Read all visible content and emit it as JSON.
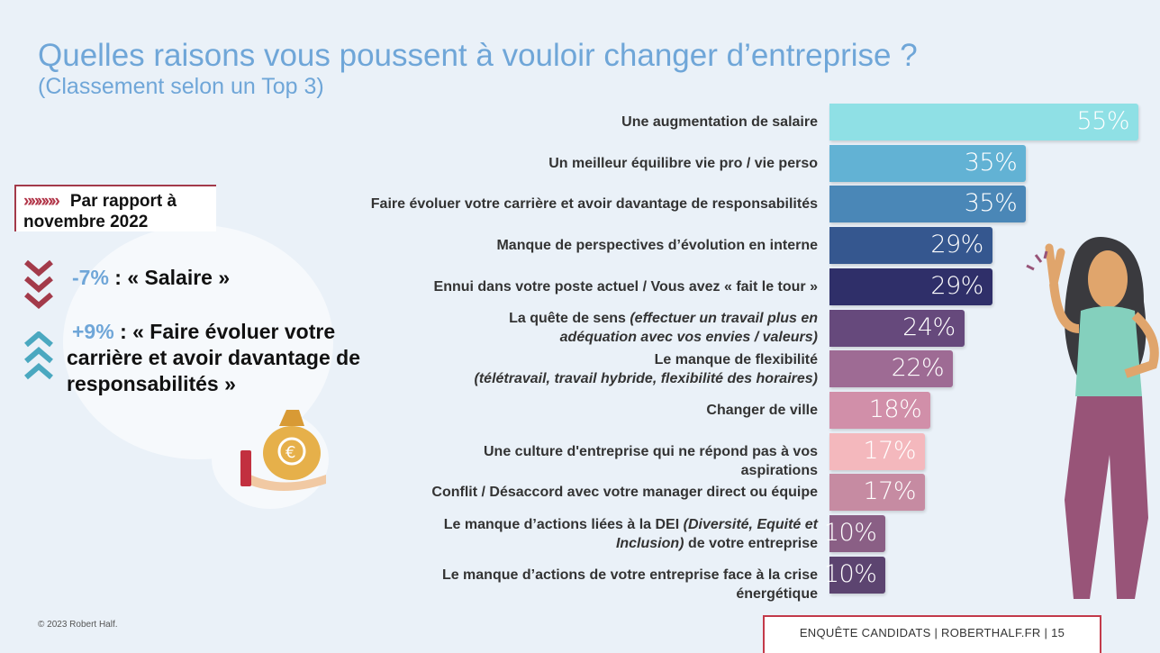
{
  "title": "Quelles raisons vous poussent à vouloir changer d’entreprise ?",
  "subtitle": "(Classement selon un Top 3)",
  "comparison": {
    "chevrons": "»»»»»",
    "heading": "Par rapport à novembre 2022",
    "items": [
      {
        "pct": "-7%",
        "text": " : « Salaire »",
        "direction": "down",
        "color": "#a33a4a"
      },
      {
        "pct": "+9%",
        "text": " : « Faire évoluer votre carrière et avoir davantage de responsabilités »",
        "direction": "up",
        "color": "#4aa8c0"
      }
    ]
  },
  "chart_data": {
    "type": "bar",
    "orientation": "horizontal",
    "xlim": [
      0,
      55
    ],
    "unit": "%",
    "categories": [
      [
        {
          "t": "Une augmentation de salaire"
        }
      ],
      [
        {
          "t": "Un meilleur équilibre vie pro / vie perso"
        }
      ],
      [
        {
          "t": "Faire évoluer votre carrière et avoir davantage de responsabilités"
        }
      ],
      [
        {
          "t": "Manque de perspectives d’évolution en interne"
        }
      ],
      [
        {
          "t": "Ennui dans votre poste actuel / Vous avez « fait le tour »"
        }
      ],
      [
        {
          "t": "La quête de sens "
        },
        {
          "t": "(effectuer un travail plus en adéquation avec vos envies / valeurs)",
          "i": true
        }
      ],
      [
        {
          "t": "Le manque de flexibilité"
        },
        {
          "t": "(télétravail, travail hybride, flexibilité des horaires)",
          "i": true,
          "br": true
        }
      ],
      [
        {
          "t": "Changer de ville"
        }
      ],
      [
        {
          "t": "Une culture d'entreprise qui ne répond pas à vos aspirations"
        }
      ],
      [
        {
          "t": "Conflit / Désaccord avec votre manager direct ou équipe"
        }
      ],
      [
        {
          "t": "Le manque d’actions liées à la DEI "
        },
        {
          "t": "(Diversité, Equité et Inclusion)",
          "i": true
        },
        {
          "t": " de votre entreprise"
        }
      ],
      [
        {
          "t": "Le manque d’actions de votre entreprise face à la crise énergétique"
        }
      ]
    ],
    "values": [
      55,
      35,
      35,
      29,
      29,
      24,
      22,
      18,
      17,
      17,
      10,
      10
    ],
    "value_labels": [
      "55%",
      "35%",
      "35%",
      "29%",
      "29%",
      "24%",
      "22%",
      "18%",
      "17%",
      "17%",
      "10%",
      "10%"
    ],
    "colors": [
      "#8fe0e5",
      "#62b2d4",
      "#4a87b7",
      "#35578f",
      "#2f2f69",
      "#66497c",
      "#9e6b94",
      "#d18fa9",
      "#f4b8bd",
      "#c68ba2",
      "#8a5f85",
      "#5c4470"
    ]
  },
  "copyright": "© 2023 Robert Half.",
  "footer": "ENQUÊTE CANDIDATS  |  ROBERTHALF.FR  |  15"
}
